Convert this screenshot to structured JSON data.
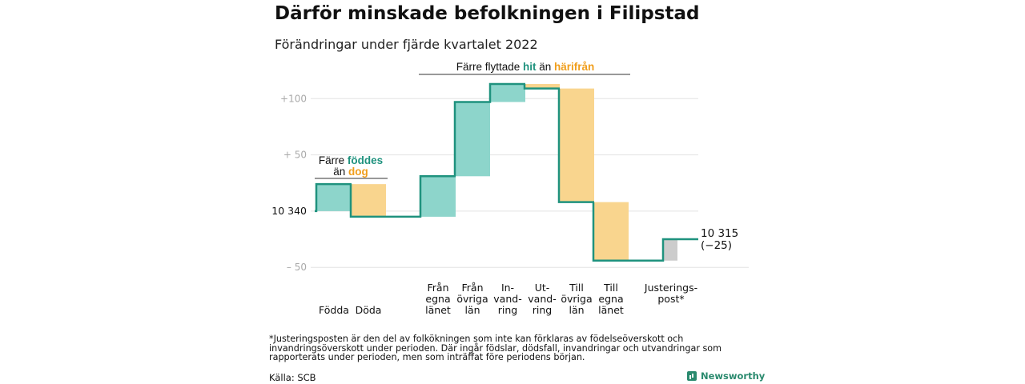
{
  "header": {
    "title": "Därför minskade befolkningen i Filipstad",
    "subtitle": "Förändringar under fjärde kvartalet 2022"
  },
  "colors": {
    "increase": "#8dd5cb",
    "decrease": "#f9d58e",
    "adjustment": "#cccccc",
    "line": "#1f927e",
    "teal_text": "#1f927e",
    "orange_text": "#f09e1c",
    "grid": "#e3e3e3"
  },
  "chart_data": {
    "type": "waterfall",
    "title": "Därför minskade befolkningen i Filipstad",
    "subtitle": "Förändringar under fjärde kvartalet 2022",
    "start_value": 10340,
    "end_value": 10315,
    "ylim": [
      -52,
      113
    ],
    "y_ticks": [
      {
        "value": 100,
        "label": "+100"
      },
      {
        "value": 50,
        "label": "+ 50"
      },
      {
        "value": 0,
        "label": "10 340"
      },
      {
        "value": -50,
        "label": "– 50"
      }
    ],
    "grid": true,
    "steps": [
      {
        "label": [
          "Födda"
        ],
        "change": 24,
        "kind": "increase"
      },
      {
        "label": [
          "Döda"
        ],
        "change": -29,
        "kind": "decrease"
      },
      {
        "label": [
          "Från",
          "egna",
          "länet"
        ],
        "change": 36,
        "kind": "increase"
      },
      {
        "label": [
          "Från",
          "övriga",
          "län"
        ],
        "change": 66,
        "kind": "increase"
      },
      {
        "label": [
          "In-",
          "vand-",
          "ring"
        ],
        "change": 16,
        "kind": "increase"
      },
      {
        "label": [
          "Ut-",
          "vand-",
          "ring"
        ],
        "change": -4,
        "kind": "decrease"
      },
      {
        "label": [
          "Till",
          "övriga",
          "län"
        ],
        "change": -101,
        "kind": "decrease"
      },
      {
        "label": [
          "Till",
          "egna",
          "länet"
        ],
        "change": -52,
        "kind": "decrease"
      },
      {
        "label": [
          "Justerings-",
          "post*"
        ],
        "change": 19,
        "kind": "adjustment"
      }
    ],
    "end_label": [
      "10 315",
      "(−25)"
    ],
    "annotations": [
      {
        "text_parts": [
          "Färre flyttade ",
          "hit",
          " än ",
          "härifrån"
        ],
        "colors": [
          "#111111",
          "#1f927e",
          "#111111",
          "#f09e1c"
        ],
        "span": [
          2,
          7
        ]
      },
      {
        "text_parts": [
          "Färre ",
          "föddes",
          "än ",
          "dog"
        ],
        "colors": [
          "#111111",
          "#1f927e",
          "#111111",
          "#f09e1c"
        ],
        "span": [
          0,
          1
        ]
      }
    ]
  },
  "footer": {
    "note": "*Justeringsposten är den del av folkökningen som inte kan förklaras av födelseöverskott och invandringsöverskott under perioden. Där ingår födslar, dödsfall, invandringar och utvandringar som rapporterats under perioden, men som inträffat före periodens början.",
    "source": "Källa: SCB",
    "brand": "Newsworthy"
  }
}
